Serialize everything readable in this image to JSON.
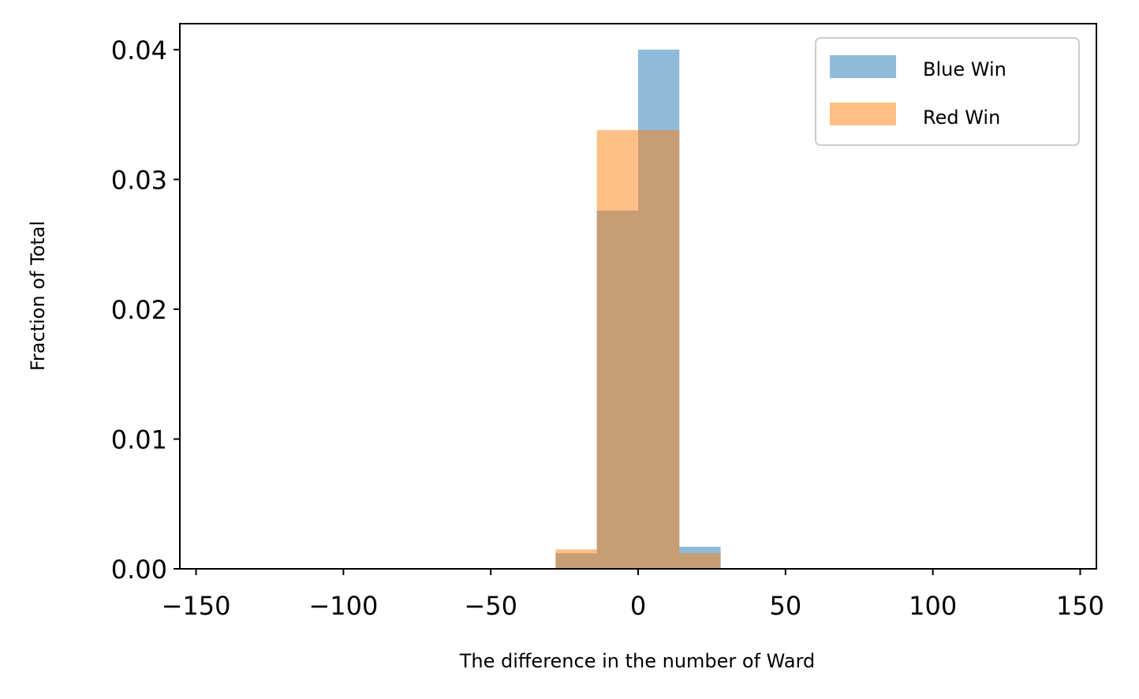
{
  "chart_data": {
    "type": "bar",
    "xlabel": "The difference in the number of Ward",
    "ylabel": "Fraction of Total",
    "xlim": [
      -155.5,
      155.5
    ],
    "ylim": [
      0,
      0.042
    ],
    "bin_edges": [
      -28,
      -14,
      0,
      14,
      28
    ],
    "x_ticks": [
      -150,
      -100,
      -50,
      0,
      50,
      100,
      150
    ],
    "x_tick_labels": [
      "−150",
      "−100",
      "−50",
      "0",
      "50",
      "100",
      "150"
    ],
    "y_ticks": [
      0.0,
      0.01,
      0.02,
      0.03,
      0.04
    ],
    "y_tick_labels": [
      "0.00",
      "0.01",
      "0.02",
      "0.03",
      "0.04"
    ],
    "grid": false,
    "legend_position": "top-right",
    "series": [
      {
        "name": "Blue Win",
        "color": "#1f77b4",
        "alpha": 0.5,
        "values": [
          0.0012,
          0.0276,
          0.04,
          0.0017
        ]
      },
      {
        "name": "Red Win",
        "color": "#ff7f0e",
        "alpha": 0.5,
        "values": [
          0.0015,
          0.0338,
          0.0338,
          0.0012
        ]
      }
    ]
  }
}
